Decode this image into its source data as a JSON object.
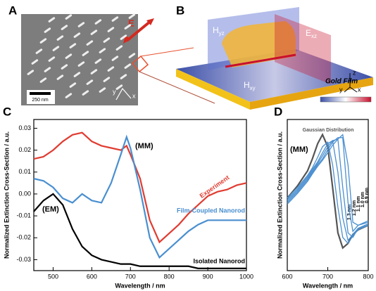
{
  "panel_a": {
    "letter": "A",
    "field": "E",
    "scale_bar": "250 nm",
    "axis_y": "y",
    "axis_x": "x"
  },
  "panel_b": {
    "letter": "B",
    "plane_yz": {
      "main": "H",
      "sub": "yz"
    },
    "plane_xz": {
      "main": "E",
      "sub": "xz"
    },
    "plane_xy": {
      "main": "H",
      "sub": "xy"
    },
    "film": "Gold Film",
    "axis_z": "z",
    "axis_y": "y",
    "axis_x": "x"
  },
  "chart_data": [
    {
      "type": "line",
      "letter": "C",
      "xlabel": "Wavelength / nm",
      "ylabel": "Normalized Extinction Cross-Section / a.u.",
      "annotations": [
        "(MM)",
        "(EM)"
      ],
      "x": [
        450,
        475,
        500,
        525,
        550,
        575,
        600,
        625,
        650,
        675,
        690,
        700,
        725,
        750,
        775,
        800,
        825,
        850,
        875,
        900,
        925,
        950,
        975,
        1000
      ],
      "xlim": [
        450,
        1000
      ],
      "xticks": [
        500,
        600,
        700,
        800,
        900,
        1000
      ],
      "ylim": [
        -0.035,
        0.034
      ],
      "yticks": [
        0.03,
        0.02,
        0.01,
        {
          "value": 0,
          "label": "0.00"
        },
        -0.01,
        -0.02,
        -0.03
      ],
      "series": [
        {
          "name": "Experiment",
          "color": "#e03c31",
          "values": [
            0.016,
            0.017,
            0.02,
            0.024,
            0.027,
            0.028,
            0.024,
            0.022,
            0.021,
            0.02,
            0.022,
            0.018,
            0.007,
            -0.012,
            -0.022,
            -0.018,
            -0.014,
            -0.009,
            -0.005,
            -0.001,
            0.001,
            0.002,
            0.004,
            0.005
          ]
        },
        {
          "name": "Film-Coupled Nanorod",
          "color": "#4a8fd0",
          "values": [
            0.007,
            0.006,
            0.003,
            -0.002,
            -0.004,
            0,
            -0.003,
            -0.004,
            0.005,
            0.018,
            0.026,
            0.021,
            0.002,
            -0.02,
            -0.029,
            -0.025,
            -0.021,
            -0.017,
            -0.014,
            -0.012,
            -0.012,
            -0.012,
            -0.012,
            -0.012
          ]
        },
        {
          "name": "Isolated Nanorod",
          "color": "#000000",
          "values": [
            -0.008,
            -0.003,
            0,
            -0.005,
            -0.016,
            -0.024,
            -0.028,
            -0.03,
            -0.031,
            -0.032,
            -0.032,
            -0.032,
            -0.033,
            -0.033,
            -0.033,
            -0.033,
            -0.033,
            -0.033,
            -0.034,
            -0.034,
            -0.034,
            -0.034,
            -0.034,
            -0.034
          ]
        }
      ]
    },
    {
      "type": "line",
      "letter": "D",
      "xlabel": "Wavelength / nm",
      "ylabel": "Normalized Extinction Cross-Section / a.u.",
      "annotations": [
        "(MM)"
      ],
      "x": [
        600,
        625,
        650,
        662,
        675,
        687,
        700,
        712,
        725,
        737,
        750,
        762,
        775,
        800
      ],
      "xlim": [
        600,
        800
      ],
      "xticks": [
        600,
        700,
        800
      ],
      "ylim": [
        0,
        1
      ],
      "series": [
        {
          "name": "Gaussian Distribution",
          "color": "#555555",
          "values": [
            0.48,
            0.56,
            0.66,
            0.74,
            0.84,
            0.9,
            0.82,
            0.55,
            0.25,
            0.15,
            0.18,
            0.24,
            0.27,
            0.3
          ]
        },
        {
          "name": "1.3 nm",
          "color": "#4a8fd0",
          "values": [
            0.48,
            0.55,
            0.63,
            0.68,
            0.75,
            0.82,
            0.85,
            0.7,
            0.42,
            0.22,
            0.18,
            0.23,
            0.27,
            0.3
          ]
        },
        {
          "name": "1.2 nm",
          "color": "#4a8fd0",
          "values": [
            0.47,
            0.54,
            0.62,
            0.67,
            0.72,
            0.78,
            0.84,
            0.86,
            0.65,
            0.35,
            0.2,
            0.24,
            0.28,
            0.3
          ]
        },
        {
          "name": "1.1 nm",
          "color": "#4a8fd0",
          "values": [
            0.46,
            0.53,
            0.61,
            0.66,
            0.71,
            0.76,
            0.82,
            0.86,
            0.87,
            0.55,
            0.25,
            0.22,
            0.28,
            0.31
          ]
        },
        {
          "name": "1.0 nm",
          "color": "#4a8fd0",
          "values": [
            0.45,
            0.52,
            0.6,
            0.65,
            0.7,
            0.74,
            0.8,
            0.85,
            0.88,
            0.88,
            0.45,
            0.26,
            0.3,
            0.32
          ]
        },
        {
          "name": "0.9 nm",
          "color": "#4a8fd0",
          "values": [
            0.44,
            0.51,
            0.59,
            0.64,
            0.69,
            0.73,
            0.78,
            0.83,
            0.87,
            0.9,
            0.7,
            0.32,
            0.3,
            0.33
          ]
        }
      ]
    }
  ]
}
